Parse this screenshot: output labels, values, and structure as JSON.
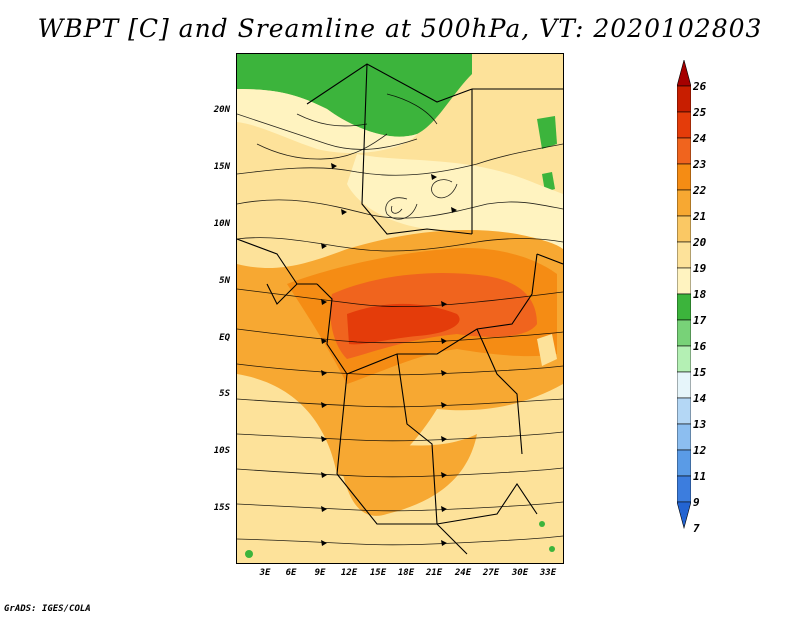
{
  "title": "WBPT [C] and Sreamline at 500hPa, VT: 2020102803",
  "credit": "GrADS: IGES/COLA",
  "map": {
    "lat_labels": [
      "20N",
      "15N",
      "10N",
      "5N",
      "EQ",
      "5S",
      "10S",
      "15S"
    ],
    "lon_labels": [
      "3E",
      "6E",
      "9E",
      "12E",
      "15E",
      "18E",
      "21E",
      "24E",
      "27E",
      "30E",
      "33E"
    ]
  },
  "colorbar": {
    "labels": [
      "26",
      "25",
      "24",
      "23",
      "22",
      "21",
      "20",
      "19",
      "18",
      "17",
      "16",
      "15",
      "14",
      "13",
      "12",
      "11",
      "9",
      "7"
    ],
    "colors": [
      "#a50000",
      "#c81e00",
      "#e43c0a",
      "#f0641e",
      "#f58c14",
      "#f7a832",
      "#fac864",
      "#fde29a",
      "#fff3c0",
      "#3cb43c",
      "#78d278",
      "#b4f0b4",
      "#e6f5fa",
      "#b4d7f5",
      "#8cbef0",
      "#5a9be6",
      "#3c7dde",
      "#2364d2"
    ]
  }
}
